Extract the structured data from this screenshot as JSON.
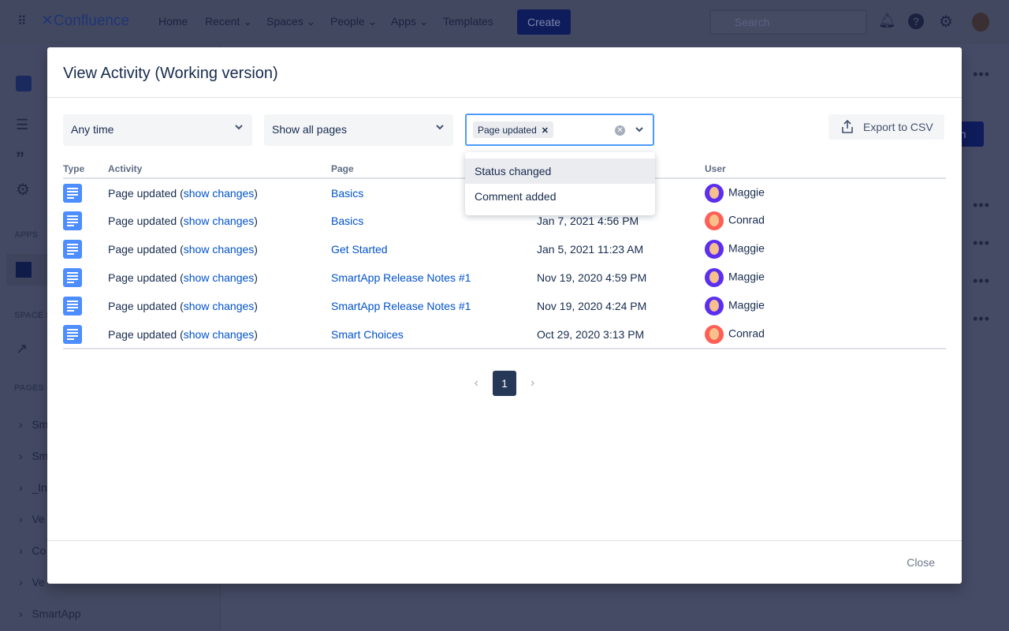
{
  "topbar": {
    "logo": "Confluence",
    "nav": [
      "Home",
      "Recent",
      "Spaces",
      "People",
      "Apps",
      "Templates"
    ],
    "create": "Create",
    "search_placeholder": "Search"
  },
  "sidebar": {
    "sections": [
      "APPS",
      "SPACE S",
      "PAGES"
    ],
    "pages": [
      "Sm",
      "Sm",
      "_In",
      "Ve",
      "Co",
      "Ve",
      "SmartApp"
    ]
  },
  "background": {
    "button_fragment": "on"
  },
  "modal": {
    "title": "View Activity (Working version)",
    "filters": {
      "time": "Any time",
      "pages": "Show all pages",
      "activity_tag": "Page updated",
      "export": "Export to CSV"
    },
    "dropdown_options": [
      "Status changed",
      "Comment added"
    ],
    "columns": [
      "Type",
      "Activity",
      "Page",
      "",
      "User"
    ],
    "rows": [
      {
        "activity": "Page updated",
        "link": "show changes",
        "page": "Basics",
        "date": "",
        "user": "Maggie"
      },
      {
        "activity": "Page updated",
        "link": "show changes",
        "page": "Basics",
        "date": "Jan 7, 2021 4:56 PM",
        "user": "Conrad"
      },
      {
        "activity": "Page updated",
        "link": "show changes",
        "page": "Get Started",
        "date": "Jan 5, 2021 11:23 AM",
        "user": "Maggie"
      },
      {
        "activity": "Page updated",
        "link": "show changes",
        "page": "SmartApp Release Notes #1",
        "date": "Nov 19, 2020 4:59 PM",
        "user": "Maggie"
      },
      {
        "activity": "Page updated",
        "link": "show changes",
        "page": "SmartApp Release Notes #1",
        "date": "Nov 19, 2020 4:24 PM",
        "user": "Maggie"
      },
      {
        "activity": "Page updated",
        "link": "show changes",
        "page": "Smart Choices",
        "date": "Oct 29, 2020 3:13 PM",
        "user": "Conrad"
      }
    ],
    "pagination": {
      "current": "1"
    },
    "close": "Close"
  },
  "colors": {
    "maggie": "#5b2ff0",
    "conrad": "#ff5f56",
    "doc": "#4c8dff",
    "link": "#0052cc"
  }
}
